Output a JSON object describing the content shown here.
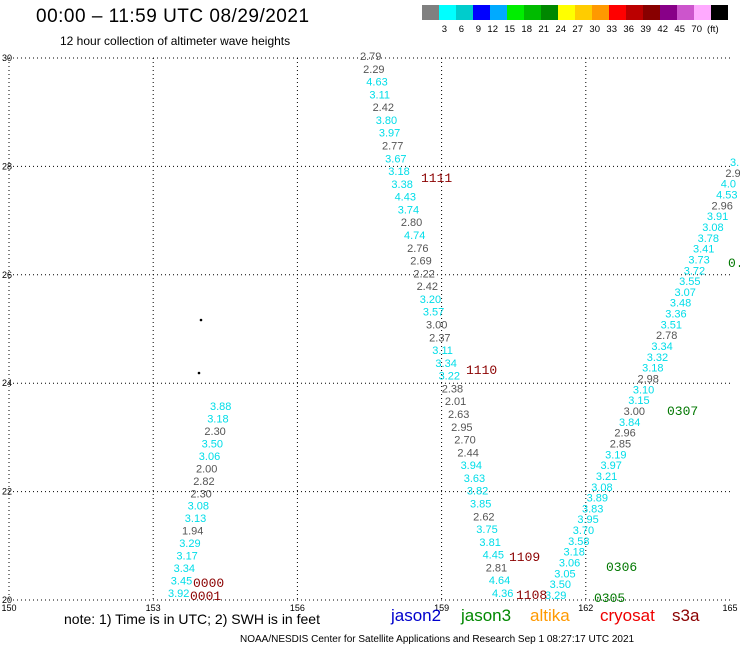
{
  "header": {
    "title": "00:00 – 11:59 UTC 08/29/2021",
    "subtitle": "12 hour collection of altimeter wave heights"
  },
  "legend": {
    "colors": [
      "#808080",
      "#00ffff",
      "#00cccc",
      "#0000ff",
      "#00aaff",
      "#00ee00",
      "#00bb00",
      "#008800",
      "#ffff00",
      "#ffcc00",
      "#ff9900",
      "#ff0000",
      "#bb0000",
      "#880000",
      "#880088",
      "#cc55cc",
      "#ffaaff",
      "#000000"
    ],
    "labels": [
      "3",
      "6",
      "9",
      "12",
      "15",
      "18",
      "21",
      "24",
      "27",
      "30",
      "33",
      "36",
      "39",
      "42",
      "45",
      "70"
    ],
    "unit": "(ft)"
  },
  "map": {
    "lon_ticks": [
      "150",
      "153",
      "156",
      "159",
      "162",
      "165"
    ],
    "lat_ticks": [
      "20",
      "22",
      "24",
      "26",
      "28",
      "30"
    ],
    "tracks": [
      {
        "name": "track-a",
        "color": "#00e5ee",
        "readings": [
          {
            "v": "3.92",
            "c": "c"
          },
          {
            "v": "3.45",
            "c": "c"
          },
          {
            "v": "3.34",
            "c": "c"
          },
          {
            "v": "3.17",
            "c": "c"
          },
          {
            "v": "3.29",
            "c": "c"
          },
          {
            "v": "1.94",
            "c": "g"
          },
          {
            "v": "3.13",
            "c": "c"
          },
          {
            "v": "3.08",
            "c": "c"
          },
          {
            "v": "2.30",
            "c": "g"
          },
          {
            "v": "2.82",
            "c": "g"
          },
          {
            "v": "2.00",
            "c": "g"
          },
          {
            "v": "3.06",
            "c": "c"
          },
          {
            "v": "3.50",
            "c": "c"
          },
          {
            "v": "2.30",
            "c": "g"
          },
          {
            "v": "3.18",
            "c": "c"
          },
          {
            "v": "3.88",
            "c": "c"
          }
        ]
      },
      {
        "name": "track-b",
        "readings": [
          {
            "v": "2.79",
            "c": "g"
          },
          {
            "v": "2.29",
            "c": "g"
          },
          {
            "v": "4.63",
            "c": "c"
          },
          {
            "v": "3.11",
            "c": "c"
          },
          {
            "v": "2.42",
            "c": "g"
          },
          {
            "v": "3.80",
            "c": "c"
          },
          {
            "v": "3.97",
            "c": "c"
          },
          {
            "v": "2.77",
            "c": "g"
          },
          {
            "v": "3.67",
            "c": "c"
          },
          {
            "v": "3.18",
            "c": "c"
          },
          {
            "v": "3.38",
            "c": "c"
          },
          {
            "v": "4.43",
            "c": "c"
          },
          {
            "v": "3.74",
            "c": "c"
          },
          {
            "v": "2.80",
            "c": "g"
          },
          {
            "v": "4.74",
            "c": "c"
          },
          {
            "v": "2.76",
            "c": "g"
          },
          {
            "v": "2.69",
            "c": "g"
          },
          {
            "v": "2.22",
            "c": "g"
          },
          {
            "v": "2.42",
            "c": "g"
          },
          {
            "v": "3.20",
            "c": "c"
          },
          {
            "v": "3.57",
            "c": "c"
          },
          {
            "v": "3.00",
            "c": "g"
          },
          {
            "v": "2.37",
            "c": "g"
          },
          {
            "v": "3.11",
            "c": "c"
          },
          {
            "v": "3.34",
            "c": "c"
          },
          {
            "v": "3.22",
            "c": "c"
          },
          {
            "v": "2.38",
            "c": "g"
          },
          {
            "v": "2.01",
            "c": "g"
          },
          {
            "v": "2.63",
            "c": "g"
          },
          {
            "v": "2.95",
            "c": "g"
          },
          {
            "v": "2.70",
            "c": "g"
          },
          {
            "v": "2.44",
            "c": "g"
          },
          {
            "v": "3.94",
            "c": "c"
          },
          {
            "v": "3.63",
            "c": "c"
          },
          {
            "v": "3.82",
            "c": "c"
          },
          {
            "v": "3.85",
            "c": "c"
          },
          {
            "v": "2.62",
            "c": "g"
          },
          {
            "v": "3.75",
            "c": "c"
          },
          {
            "v": "3.81",
            "c": "c"
          },
          {
            "v": "4.45",
            "c": "c"
          },
          {
            "v": "2.81",
            "c": "g"
          },
          {
            "v": "4.64",
            "c": "c"
          },
          {
            "v": "4.36",
            "c": "c"
          }
        ]
      },
      {
        "name": "track-c",
        "readings": [
          {
            "v": "3.29",
            "c": "c"
          },
          {
            "v": "3.50",
            "c": "c"
          },
          {
            "v": "3.05",
            "c": "c"
          },
          {
            "v": "3.06",
            "c": "c"
          },
          {
            "v": "3.18",
            "c": "c"
          },
          {
            "v": "3.58",
            "c": "c"
          },
          {
            "v": "3.70",
            "c": "c"
          },
          {
            "v": "3.95",
            "c": "c"
          },
          {
            "v": "3.83",
            "c": "c"
          },
          {
            "v": "3.89",
            "c": "c"
          },
          {
            "v": "3.08",
            "c": "c"
          },
          {
            "v": "3.21",
            "c": "c"
          },
          {
            "v": "3.97",
            "c": "c"
          },
          {
            "v": "3.19",
            "c": "c"
          },
          {
            "v": "2.85",
            "c": "g"
          },
          {
            "v": "2.96",
            "c": "g"
          },
          {
            "v": "3.84",
            "c": "c"
          },
          {
            "v": "3.00",
            "c": "g"
          },
          {
            "v": "3.15",
            "c": "c"
          },
          {
            "v": "3.10",
            "c": "c"
          },
          {
            "v": "2.98",
            "c": "g"
          },
          {
            "v": "3.18",
            "c": "c"
          },
          {
            "v": "3.32",
            "c": "c"
          },
          {
            "v": "3.34",
            "c": "c"
          },
          {
            "v": "2.78",
            "c": "g"
          },
          {
            "v": "3.51",
            "c": "c"
          },
          {
            "v": "3.36",
            "c": "c"
          },
          {
            "v": "3.48",
            "c": "c"
          },
          {
            "v": "3.07",
            "c": "c"
          },
          {
            "v": "3.55",
            "c": "c"
          },
          {
            "v": "3.72",
            "c": "c"
          },
          {
            "v": "3.73",
            "c": "c"
          },
          {
            "v": "3.41",
            "c": "c"
          },
          {
            "v": "3.78",
            "c": "c"
          },
          {
            "v": "3.08",
            "c": "c"
          },
          {
            "v": "3.91",
            "c": "c"
          },
          {
            "v": "2.96",
            "c": "g"
          },
          {
            "v": "4.53",
            "c": "c"
          },
          {
            "v": "4.0",
            "c": "c"
          },
          {
            "v": "2.9",
            "c": "g"
          },
          {
            "v": "3.",
            "c": "c"
          }
        ]
      }
    ],
    "time_labels": [
      {
        "t": "0001",
        "color": "#8b0000"
      },
      {
        "t": "0000",
        "color": "#8b0000"
      },
      {
        "t": "1111",
        "color": "#8b0000"
      },
      {
        "t": "1110",
        "color": "#8b0000"
      },
      {
        "t": "1109",
        "color": "#8b0000"
      },
      {
        "t": "1108",
        "color": "#8b0000"
      },
      {
        "t": "0305",
        "color": "#007700"
      },
      {
        "t": "0306",
        "color": "#007700"
      },
      {
        "t": "0307",
        "color": "#007700"
      },
      {
        "t": "0.",
        "color": "#007700"
      }
    ]
  },
  "footer": {
    "note": "note:  1) Time is in UTC; 2) SWH is in feet",
    "satellites": [
      {
        "name": "jason2",
        "color": "#0000cc"
      },
      {
        "name": "jason3",
        "color": "#008800"
      },
      {
        "name": "altika",
        "color": "#ff9900"
      },
      {
        "name": "cryosat",
        "color": "#ee0000"
      },
      {
        "name": "s3a",
        "color": "#8b0000"
      }
    ],
    "credit": "NOAA/NESDIS Center for Satellite Applications and Research    Sep  1 08:27:17 UTC 2021"
  }
}
